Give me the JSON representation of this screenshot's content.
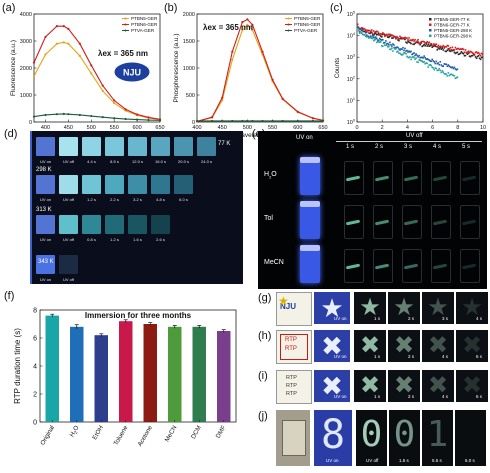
{
  "panels": {
    "a": {
      "letter": "(a)",
      "lambda_label": "λex = 365 nm",
      "logo_text": "NJU",
      "ylabel": "Fluorescence (a.u.)",
      "xlabel": "Wavelength (nm)",
      "legend": [
        "PTBN5-GER",
        "PTBN6-GER",
        "PTVA-GER"
      ]
    },
    "b": {
      "letter": "(b)",
      "lambda_label": "λex = 365 nm",
      "ylabel": "Phosphorescence (a.u.)",
      "xlabel": "Wavelength (nm)",
      "legend": [
        "PTBN5-GER",
        "PTBN6-GER",
        "PTVA-GER"
      ]
    },
    "c": {
      "letter": "(c)",
      "ylabel": "Counts",
      "xlabel": "Time (s)",
      "legend": [
        "PTBN5-GER-77 K",
        "PTBN6-GER-77 K",
        "PTBN5-GER-298 K",
        "PTBN6-GER-298 K"
      ]
    },
    "d": {
      "letter": "(d)",
      "rows": [
        {
          "temp": "77 K",
          "labels": [
            "UV on",
            "UV off",
            "4.4 s",
            "8.5 s",
            "12.0 s",
            "16.0 s",
            "20.0 s",
            "24.0 s"
          ]
        },
        {
          "temp": "298 K",
          "labels": [
            "UV on",
            "UV off",
            "1.2 s",
            "2.2 s",
            "3.2 s",
            "4.8 s",
            "6.0 s"
          ]
        },
        {
          "temp": "313 K",
          "labels": [
            "UV on",
            "UV off",
            "0.8 s",
            "1.2 s",
            "1.6 s",
            "2.6 s"
          ]
        },
        {
          "temp": "343 K",
          "labels": [
            "UV on",
            "UV off"
          ]
        }
      ]
    },
    "e": {
      "letter": "(e)",
      "header_uv_on": "UV on",
      "header_uv_off": "UV off",
      "times": [
        "1 s",
        "2 s",
        "3 s",
        "4 s",
        "5 s"
      ],
      "rows": [
        "H2O",
        "Tol",
        "MeCN"
      ]
    },
    "f": {
      "letter": "(f)",
      "title": "Immersion for three months",
      "ylabel": "RTP duration time (s)"
    },
    "g": {
      "letter": "(g)",
      "logo_text": "NJU",
      "uv_label": "UV on",
      "times": [
        "1 s",
        "2 s",
        "3 s",
        "4 s"
      ]
    },
    "h": {
      "letter": "(h)",
      "card_text": [
        "RTP",
        "RTP"
      ],
      "uv_label": "UV on",
      "times": [
        "1 s",
        "2 s",
        "4 s",
        "6 s"
      ]
    },
    "i": {
      "letter": "(i)",
      "card_text": [
        "RTP",
        "RTP",
        "RTP"
      ],
      "uv_label": "UV on",
      "times": [
        "1 s",
        "2 s",
        "4 s",
        "6 s"
      ]
    },
    "j": {
      "letter": "(j)",
      "uv_label": "UV on",
      "uv_off_label": "UV off",
      "times": [
        "1.5 s",
        "5.5 s",
        "6.0 s"
      ]
    }
  },
  "chart_data": [
    {
      "type": "line",
      "panel": "a",
      "xlim": [
        375,
        650
      ],
      "ylim": [
        0,
        4000
      ],
      "xticks": [
        400,
        450,
        500,
        550,
        600,
        650
      ],
      "yticks": [
        0,
        1000,
        2000,
        3000,
        4000
      ],
      "x": [
        375,
        400,
        425,
        440,
        450,
        475,
        500,
        525,
        550,
        575,
        600,
        625,
        650
      ],
      "series": [
        {
          "name": "PTBN5-GER",
          "color": "#e8a317",
          "values": [
            1700,
            2500,
            2900,
            2950,
            2900,
            2450,
            1800,
            1150,
            700,
            420,
            250,
            150,
            90
          ]
        },
        {
          "name": "PTBN6-GER",
          "color": "#cc1f1f",
          "values": [
            2200,
            3150,
            3550,
            3550,
            3450,
            2900,
            2100,
            1350,
            800,
            470,
            280,
            170,
            100
          ]
        },
        {
          "name": "PTVA-GER",
          "color": "#1f5a3a",
          "values": [
            200,
            260,
            290,
            300,
            290,
            260,
            220,
            180,
            140,
            110,
            90,
            70,
            60
          ]
        }
      ]
    },
    {
      "type": "line",
      "panel": "b",
      "xlim": [
        400,
        650
      ],
      "ylim": [
        0,
        2000
      ],
      "xticks": [
        400,
        450,
        500,
        550,
        600,
        650
      ],
      "yticks": [
        0,
        500,
        1000,
        1500,
        2000
      ],
      "x": [
        400,
        430,
        450,
        470,
        490,
        500,
        510,
        530,
        550,
        570,
        600,
        630,
        650
      ],
      "series": [
        {
          "name": "PTBN5-GER",
          "color": "#e8a317",
          "values": [
            10,
            80,
            400,
            1150,
            1700,
            1800,
            1700,
            1250,
            750,
            420,
            180,
            70,
            30
          ]
        },
        {
          "name": "PTBN6-GER",
          "color": "#cc1f1f",
          "values": [
            10,
            90,
            450,
            1300,
            1850,
            1900,
            1800,
            1300,
            780,
            430,
            190,
            70,
            30
          ]
        },
        {
          "name": "PTVA-GER",
          "color": "#1f5a3a",
          "values": [
            20,
            20,
            20,
            20,
            20,
            20,
            20,
            20,
            20,
            20,
            20,
            20,
            20
          ]
        }
      ]
    },
    {
      "type": "scatter",
      "panel": "c",
      "xlim": [
        0,
        10
      ],
      "yscale": "log",
      "ylim": [
        1,
        100000
      ],
      "xticks": [
        0,
        2,
        4,
        6,
        8,
        10
      ],
      "yticks": [
        1,
        10,
        100,
        1000,
        10000,
        100000
      ],
      "series": [
        {
          "name": "PTBN5-GER-77 K",
          "color": "#2a2a2a",
          "tau": 3.2,
          "a0": 30000,
          "xmax": 10,
          "floor": 40
        },
        {
          "name": "PTBN6-GER-77 K",
          "color": "#d42020",
          "tau": 3.6,
          "a0": 32000,
          "xmax": 10,
          "floor": 60
        },
        {
          "name": "PTBN5-GER-298 K",
          "color": "#1f5aa6",
          "tau": 1.9,
          "a0": 25000,
          "xmax": 8,
          "floor": 8
        },
        {
          "name": "PTBN6-GER-298 K",
          "color": "#2aa39a",
          "tau": 1.6,
          "a0": 22000,
          "xmax": 8,
          "floor": 5
        }
      ]
    },
    {
      "type": "bar",
      "panel": "f",
      "title": "Immersion for three months",
      "ylabel": "RTP duration time (s)",
      "categories": [
        "Original",
        "H2O",
        "EtOH",
        "Toluene",
        "Acetone",
        "MeCN",
        "DCM",
        "DMF"
      ],
      "values": [
        7.6,
        6.8,
        6.2,
        7.2,
        7.0,
        6.8,
        6.8,
        6.5
      ],
      "errors": [
        0.1,
        0.15,
        0.1,
        0.1,
        0.1,
        0.1,
        0.1,
        0.1
      ],
      "colors": [
        "#1aa6a6",
        "#1f6fb8",
        "#2c3e8c",
        "#c9184a",
        "#8c1c13",
        "#4d9b3a",
        "#2f7d4f",
        "#7a3f8c"
      ],
      "ylim": [
        0,
        8
      ],
      "yticks": [
        0,
        2,
        4,
        6,
        8
      ]
    }
  ]
}
